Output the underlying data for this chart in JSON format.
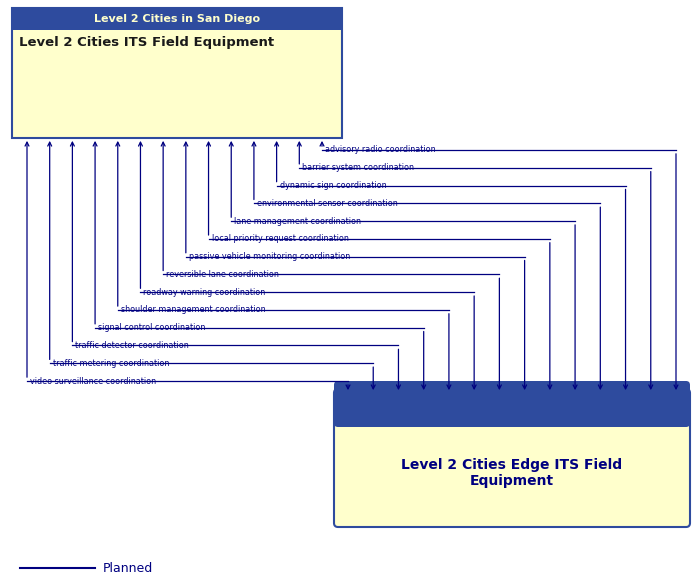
{
  "box1_title": "Level 2 Cities in San Diego",
  "box1_label": "Level 2 Cities ITS Field Equipment",
  "box1_header_color": "#2E4B9E",
  "box1_body_color": "#FFFFCC",
  "box1_title_color": "#FFFFCC",
  "box1_label_color": "#1a1a1a",
  "box2_line1": "Level 2 Cities Edge ITS Field",
  "box2_line2": "Equipment",
  "box2_header_color": "#2E4B9E",
  "box2_body_color": "#FFFFCC",
  "box2_text_color": "#000080",
  "arrow_color": "#000080",
  "label_color": "#000080",
  "connections": [
    "advisory radio coordination",
    "barrier system coordination",
    "dynamic sign coordination",
    "environmental sensor coordination",
    "lane management coordination",
    "local priority request coordination",
    "passive vehicle monitoring coordination",
    "reversible lane coordination",
    "roadway warning coordination",
    "shoulder management coordination",
    "signal control coordination",
    "traffic detector coordination",
    "traffic metering coordination",
    "video surveillance coordination"
  ],
  "legend_label": "Planned",
  "bg_color": "#FFFFFF",
  "line_color": "#000080"
}
